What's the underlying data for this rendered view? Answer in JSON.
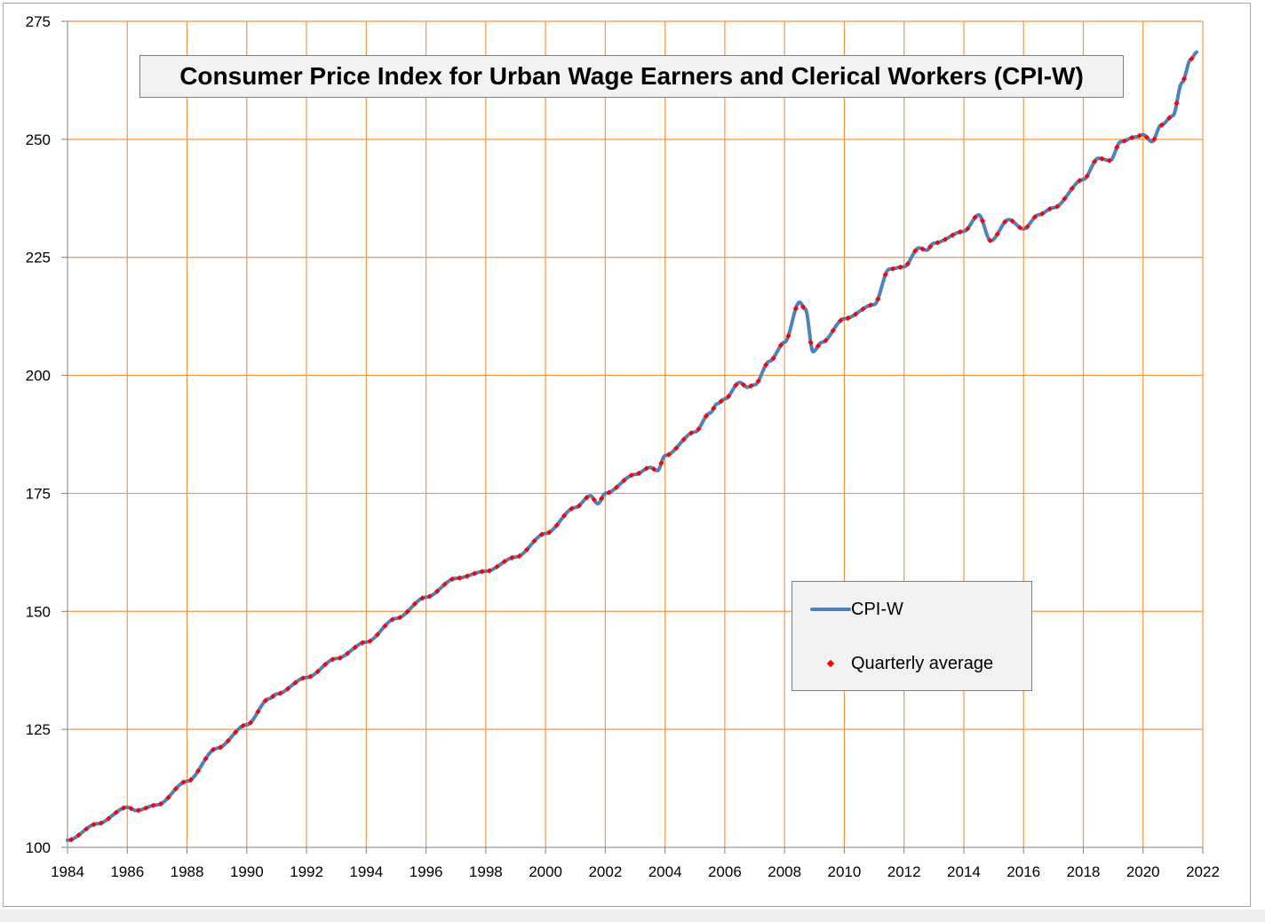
{
  "chart_data": {
    "type": "line",
    "title": "Consumer Price Index for Urban Wage Earners and Clerical Workers (CPI-W)",
    "xlabel": "",
    "ylabel": "",
    "xlim": [
      1984,
      2022
    ],
    "ylim": [
      100,
      275
    ],
    "x_ticks": [
      "1984",
      "1986",
      "1988",
      "1990",
      "1992",
      "1994",
      "1996",
      "1998",
      "2000",
      "2002",
      "2004",
      "2006",
      "2008",
      "2010",
      "2012",
      "2014",
      "2016",
      "2018",
      "2020",
      "2022"
    ],
    "y_ticks": [
      "100",
      "125",
      "150",
      "175",
      "200",
      "225",
      "250",
      "275"
    ],
    "grid": true,
    "legend_position": "lower-right",
    "colors": {
      "line": "#4f81bd",
      "markers": "#ff0000",
      "grid": "#f79646"
    },
    "series": [
      {
        "name": "CPI-W",
        "style": "line",
        "x": [
          1984.0,
          1985.0,
          1986.0,
          1986.3,
          1987.0,
          1988.0,
          1989.0,
          1990.0,
          1990.75,
          1991.0,
          1992.0,
          1993.0,
          1994.0,
          1995.0,
          1996.0,
          1997.0,
          1998.0,
          1999.0,
          2000.0,
          2001.0,
          2001.5,
          2001.75,
          2002.0,
          2003.0,
          2003.5,
          2003.75,
          2004.0,
          2005.0,
          2005.5,
          2005.75,
          2006.0,
          2006.5,
          2006.75,
          2007.0,
          2007.5,
          2008.0,
          2008.5,
          2008.7,
          2008.95,
          2009.25,
          2010.0,
          2011.0,
          2011.5,
          2012.0,
          2012.5,
          2012.75,
          2013.0,
          2014.0,
          2014.5,
          2014.9,
          2015.5,
          2016.0,
          2016.5,
          2017.0,
          2018.0,
          2018.5,
          2018.9,
          2019.25,
          2019.75,
          2020.0,
          2020.3,
          2020.6,
          2021.0,
          2021.3,
          2021.6,
          2021.8
        ],
        "values": [
          101.5,
          105.0,
          108.5,
          107.8,
          109.0,
          114.0,
          121.0,
          126.0,
          131.5,
          132.5,
          136.0,
          140.0,
          143.5,
          148.5,
          153.0,
          157.0,
          158.5,
          161.5,
          166.5,
          172.0,
          174.5,
          172.8,
          175.0,
          179.0,
          180.5,
          179.8,
          183.0,
          188.0,
          192.0,
          194.0,
          195.0,
          198.5,
          197.5,
          198.0,
          203.0,
          207.0,
          215.5,
          214.0,
          205.0,
          207.0,
          212.0,
          215.0,
          222.5,
          223.0,
          227.0,
          226.5,
          228.0,
          230.5,
          234.0,
          228.5,
          233.0,
          231.0,
          234.0,
          235.5,
          241.5,
          246.0,
          245.5,
          249.5,
          250.5,
          251.0,
          249.5,
          253.0,
          255.0,
          262.0,
          267.0,
          268.5
        ]
      },
      {
        "name": "Quarterly average",
        "style": "markers",
        "x": [],
        "values": []
      }
    ]
  }
}
